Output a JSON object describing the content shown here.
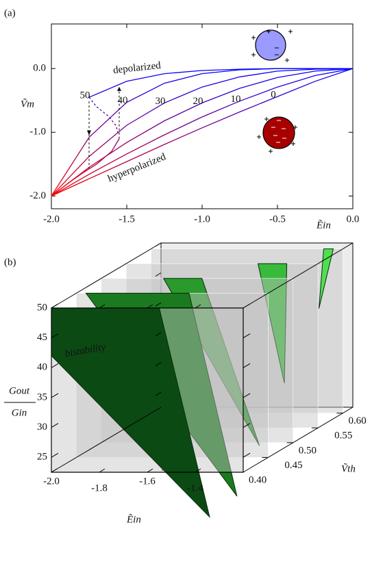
{
  "chart_data": [
    {
      "type": "line",
      "label": "(a)",
      "xlabel": "Ẽin",
      "ylabel": "Ṽm",
      "xlim": [
        -2.0,
        0.0
      ],
      "ylim": [
        -2.2,
        0.7
      ],
      "xticks": [
        {
          "value": -2,
          "label": "-2.0"
        },
        {
          "value": -1.5,
          "label": "-1.5"
        },
        {
          "value": -1,
          "label": "-1.0"
        },
        {
          "value": -0.5,
          "label": "-0.5"
        },
        {
          "value": 0,
          "label": "0.0"
        }
      ],
      "yticks": [
        {
          "value": 0,
          "label": "0.0"
        },
        {
          "value": -1,
          "label": "-1.0"
        },
        {
          "value": -2,
          "label": "-2.0"
        }
      ],
      "gradient": [
        "#0000ff",
        "#ff0000"
      ],
      "annotations": [
        "depolarized",
        "hyperpolarized"
      ],
      "series": [
        {
          "name": "0",
          "x": [
            0,
            -0.25,
            -0.5,
            -0.75,
            -1,
            -1.25,
            -1.5,
            -1.75,
            -2
          ],
          "values": [
            0,
            -0.2,
            -0.44,
            -0.68,
            -0.93,
            -1.19,
            -1.46,
            -1.73,
            -2.0
          ]
        },
        {
          "name": "10",
          "x": [
            0,
            -0.25,
            -0.5,
            -0.75,
            -1,
            -1.25,
            -1.5,
            -1.75,
            -2
          ],
          "values": [
            0,
            -0.11,
            -0.29,
            -0.51,
            -0.76,
            -1.04,
            -1.34,
            -1.66,
            -2.0
          ]
        },
        {
          "name": "20",
          "x": [
            0,
            -0.25,
            -0.5,
            -0.75,
            -1,
            -1.25,
            -1.5,
            -1.75,
            -2
          ],
          "values": [
            0,
            -0.04,
            -0.14,
            -0.31,
            -0.54,
            -0.82,
            -1.16,
            -1.55,
            -2.0
          ]
        },
        {
          "name": "30",
          "x": [
            0,
            -0.25,
            -0.5,
            -0.75,
            -1,
            -1.25,
            -1.5,
            -1.75,
            -2
          ],
          "values": [
            0,
            -0.01,
            -0.04,
            -0.13,
            -0.29,
            -0.54,
            -0.89,
            -1.38,
            -2.0
          ]
        },
        {
          "name": "40",
          "x": [
            0,
            -0.25,
            -0.5,
            -0.75,
            -1,
            -1.25,
            -1.5,
            -1.75,
            -2
          ],
          "values": [
            0,
            0,
            0,
            -0.02,
            -0.08,
            -0.23,
            -0.53,
            -1.08,
            -2.0
          ]
        },
        {
          "name": "50",
          "x": [
            0,
            -0.25,
            -0.5,
            -0.75,
            -1,
            -1.25,
            -1.5,
            -1.75,
            -1.7,
            -1.62,
            -1.57,
            -1.55,
            -1.6,
            -1.7,
            -1.8,
            -1.9,
            -2.0
          ],
          "values": [
            0,
            0,
            0,
            -0.01,
            -0.03,
            -0.08,
            -0.2,
            -0.45,
            -0.6,
            -0.75,
            -0.9,
            -1.1,
            -1.3,
            -1.5,
            -1.65,
            -1.82,
            -2.0
          ],
          "dashed": [
            7,
            11
          ]
        }
      ]
    },
    {
      "type": "slices3d",
      "label": "(b)",
      "xlabel": "Ẽin",
      "ylabel": "Ṽth",
      "zlabel": [
        "Gout",
        "Gin"
      ],
      "xlim": [
        -2.0,
        -1.2
      ],
      "vlim": [
        0.4,
        0.62
      ],
      "zlim": [
        22.5,
        50
      ],
      "xticks": [
        {
          "value": -2,
          "label": "-2.0"
        },
        {
          "value": -1.8,
          "label": "-1.8"
        },
        {
          "value": -1.6,
          "label": "-1.6"
        },
        {
          "value": -1.4,
          "label": "-1.4"
        }
      ],
      "vticks": [
        {
          "value": 0.4,
          "label": "0.40"
        },
        {
          "value": 0.45,
          "label": "0.45"
        },
        {
          "value": 0.5,
          "label": "0.50"
        },
        {
          "value": 0.55,
          "label": "0.55"
        },
        {
          "value": 0.6,
          "label": "0.60"
        }
      ],
      "zticks": [
        25,
        30,
        35,
        40,
        45,
        50
      ],
      "plane_color": "#c4c4c4",
      "annotation": "bistability",
      "annotation_color": "#4ef07a",
      "slices": [
        {
          "vth": 0.4,
          "color": "#0c4a14",
          "x": [
            -2.0,
            -1.55,
            -1.34,
            -2.0
          ],
          "z": [
            50,
            50,
            15,
            42
          ]
        },
        {
          "vth": 0.45,
          "color": "#1b7a1f",
          "x": [
            -1.96,
            -1.53,
            -1.33
          ],
          "z": [
            50,
            50,
            16
          ]
        },
        {
          "vth": 0.5,
          "color": "#2a9a2c",
          "x": [
            -1.74,
            -1.58,
            -1.34
          ],
          "z": [
            50,
            50,
            22
          ]
        },
        {
          "vth": 0.55,
          "color": "#38bb3a",
          "x": [
            -1.45,
            -1.33,
            -1.34
          ],
          "z": [
            50,
            50,
            30
          ]
        },
        {
          "vth": 0.6,
          "color": "#4fe04f",
          "x": [
            -1.28,
            -1.24,
            -1.3
          ],
          "z": [
            50,
            50,
            40
          ]
        }
      ]
    }
  ]
}
